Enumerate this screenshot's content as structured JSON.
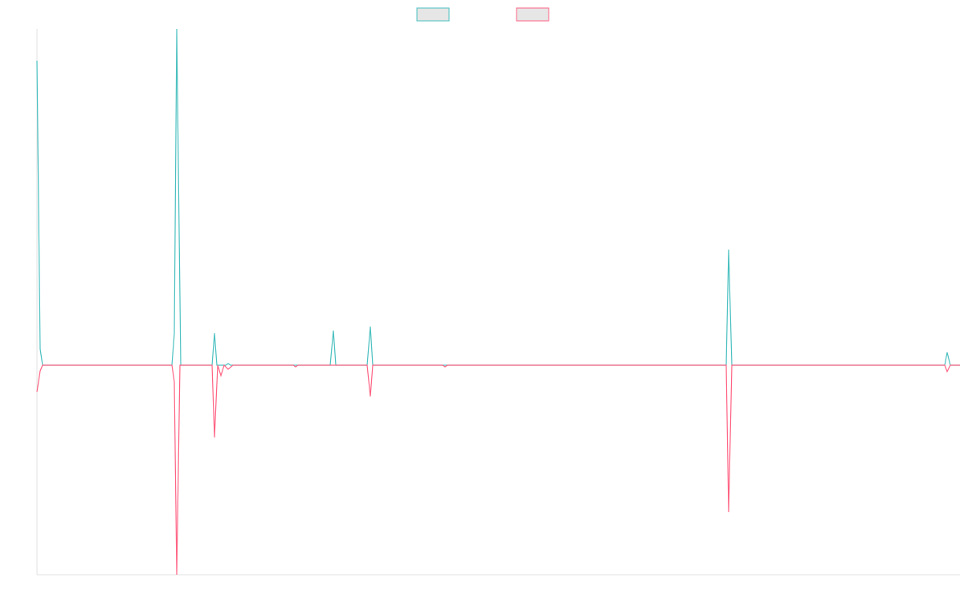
{
  "chart_data": {
    "type": "line",
    "xlim": [
      0,
      1149
    ],
    "ylim": [
      -62.3,
      100
    ],
    "legend": "top",
    "series": [
      {
        "color": "#4bc0c0",
        "x": [
          0,
          4,
          7,
          168,
          171,
          174,
          179,
          218,
          221,
          224,
          235,
          238,
          241,
          365,
          369,
          372,
          411,
          415,
          418,
          858,
          861,
          865,
          1130,
          1133,
          1137,
          1149
        ],
        "values": [
          90.5,
          4.8,
          0,
          0,
          9.5,
          100,
          0,
          0,
          9.5,
          0,
          0,
          0.5,
          0,
          0,
          10.3,
          0,
          0,
          11.5,
          0,
          0,
          34.4,
          0,
          0,
          3.8,
          0,
          0
        ]
      },
      {
        "color": "#ff6384",
        "x": [
          0,
          4,
          7,
          168,
          171,
          174,
          178,
          218,
          221,
          225,
          229,
          233,
          238,
          244,
          319,
          322,
          325,
          411,
          415,
          418,
          505,
          508,
          511,
          858,
          861,
          865,
          1130,
          1133,
          1137,
          1149
        ],
        "values": [
          -7.9,
          -1.7,
          0,
          0,
          -5,
          -62.3,
          0,
          0,
          -21.5,
          0,
          -3.1,
          0,
          -1.2,
          0,
          0,
          -0.5,
          0,
          0,
          -9.3,
          0,
          0,
          -0.5,
          0,
          0,
          -43.7,
          0,
          0,
          -1.9,
          0,
          0
        ]
      }
    ]
  }
}
